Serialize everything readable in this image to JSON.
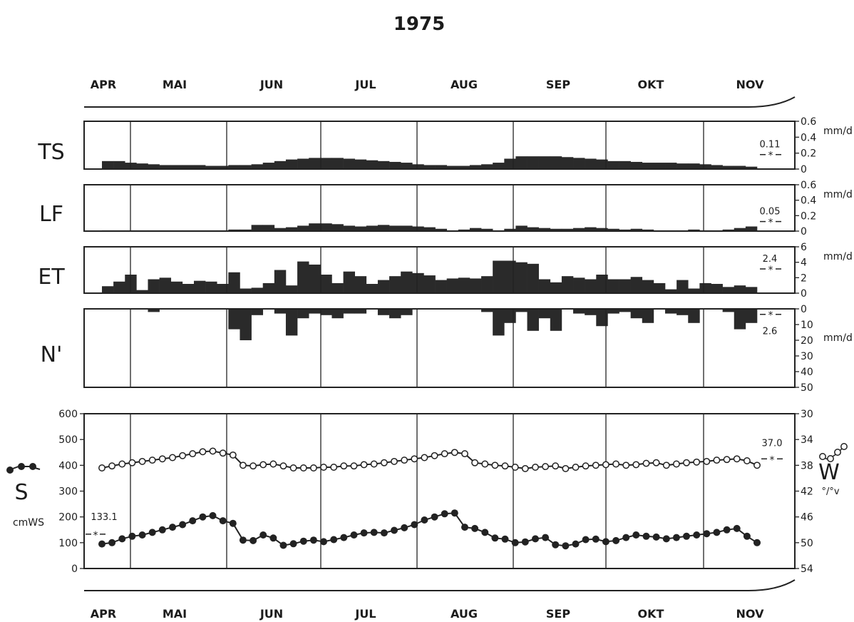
{
  "title": "1975",
  "months": [
    "APR",
    "MAI",
    "JUN",
    "JUL",
    "AUG",
    "SEP",
    "OKT",
    "NOV"
  ],
  "colors": {
    "ink": "#1c1c1c",
    "bar": "#2a2a2a",
    "background": "#ffffff"
  },
  "chart_data": [
    {
      "type": "bar",
      "label": "TS",
      "unit": "mm/d",
      "ylim": [
        0,
        0.6
      ],
      "ticks": [
        "0.6",
        "0.4",
        "0.2",
        "0"
      ],
      "mean_label": "0.11",
      "mean_value": 0.11,
      "values": [
        0.1,
        0.1,
        0.08,
        0.07,
        0.06,
        0.05,
        0.05,
        0.05,
        0.05,
        0.04,
        0.04,
        0.05,
        0.05,
        0.06,
        0.08,
        0.1,
        0.12,
        0.13,
        0.14,
        0.14,
        0.14,
        0.13,
        0.12,
        0.11,
        0.1,
        0.09,
        0.08,
        0.06,
        0.05,
        0.05,
        0.04,
        0.04,
        0.05,
        0.06,
        0.08,
        0.13,
        0.16,
        0.16,
        0.16,
        0.16,
        0.15,
        0.14,
        0.13,
        0.12,
        0.1,
        0.1,
        0.09,
        0.08,
        0.08,
        0.08,
        0.07,
        0.07,
        0.06,
        0.05,
        0.04,
        0.04,
        0.03
      ]
    },
    {
      "type": "bar",
      "label": "LF",
      "unit": "mm/d",
      "ylim": [
        0,
        0.6
      ],
      "ticks": [
        "0.6",
        "0.4",
        "0.2",
        "0"
      ],
      "mean_label": "0.05",
      "mean_value": 0.05,
      "values": [
        0.01,
        0.01,
        0.01,
        0.01,
        0.01,
        0.01,
        0.01,
        0.01,
        0.01,
        0.01,
        0.01,
        0.02,
        0.02,
        0.08,
        0.08,
        0.04,
        0.05,
        0.07,
        0.1,
        0.1,
        0.09,
        0.07,
        0.06,
        0.07,
        0.08,
        0.07,
        0.07,
        0.06,
        0.05,
        0.03,
        0.01,
        0.02,
        0.04,
        0.03,
        0.01,
        0.03,
        0.07,
        0.05,
        0.04,
        0.03,
        0.03,
        0.04,
        0.05,
        0.04,
        0.03,
        0.02,
        0.03,
        0.02,
        0.01,
        0.01,
        0.01,
        0.02,
        0.01,
        0.01,
        0.02,
        0.04,
        0.06
      ]
    },
    {
      "type": "bar",
      "label": "ET",
      "unit": "mm/d",
      "ylim": [
        0,
        6
      ],
      "ticks": [
        "6",
        "4",
        "2",
        "0"
      ],
      "mean_label": "2.4",
      "mean_value": 2.4,
      "values": [
        0.9,
        1.5,
        2.4,
        0.4,
        1.8,
        2.0,
        1.5,
        1.2,
        1.6,
        1.5,
        1.2,
        2.7,
        0.6,
        0.7,
        1.3,
        3.0,
        1.0,
        4.1,
        3.7,
        2.4,
        1.3,
        2.8,
        2.2,
        1.2,
        1.7,
        2.2,
        2.8,
        2.6,
        2.3,
        1.7,
        1.9,
        2.0,
        1.9,
        2.2,
        4.2,
        4.2,
        4.0,
        3.8,
        1.8,
        1.4,
        2.2,
        2.0,
        1.8,
        2.4,
        1.8,
        1.8,
        2.1,
        1.7,
        1.3,
        0.5,
        1.7,
        0.6,
        1.3,
        1.2,
        0.8,
        1.0,
        0.8
      ]
    },
    {
      "type": "bar",
      "label": "N'",
      "unit": "mm/d",
      "inverted": true,
      "ylim": [
        0,
        50
      ],
      "ticks": [
        "0",
        "10",
        "20",
        "30",
        "40",
        "50"
      ],
      "mean_label": "2.6",
      "mean_value": 2.6,
      "values": [
        0,
        0,
        0,
        0,
        2,
        0,
        0,
        0,
        0,
        0,
        0,
        13,
        20,
        4,
        0,
        3,
        17,
        6,
        3,
        4,
        6,
        3,
        3,
        0,
        4,
        6,
        4,
        0,
        0,
        0,
        0,
        0,
        0,
        2,
        17,
        9,
        2,
        14,
        6,
        14,
        0,
        3,
        4,
        11,
        3,
        2,
        6,
        9,
        0,
        3,
        4,
        9,
        0,
        0,
        2,
        13,
        9
      ]
    },
    {
      "type": "line",
      "label": "S",
      "unit": "cmWS",
      "left_axis": {
        "ylim": [
          0,
          600
        ],
        "ticks": [
          "600",
          "500",
          "400",
          "300",
          "200",
          "100",
          "0"
        ]
      },
      "right_axis": {
        "label": "W",
        "unit": "°/°v",
        "ylim": [
          30,
          54
        ],
        "ticks": [
          "30",
          "34",
          "38",
          "42",
          "46",
          "50",
          "54"
        ]
      },
      "series": [
        {
          "key": "W",
          "marker": "open-circle",
          "axis": "right",
          "mean_label": "37.0",
          "mean_value": 37.0,
          "values": [
            38.4,
            38.1,
            37.8,
            37.6,
            37.4,
            37.2,
            37.0,
            36.8,
            36.5,
            36.2,
            35.9,
            35.8,
            36.1,
            36.4,
            38.0,
            38.1,
            37.9,
            37.8,
            38.1,
            38.4,
            38.4,
            38.4,
            38.3,
            38.3,
            38.1,
            38.1,
            37.9,
            37.8,
            37.6,
            37.4,
            37.2,
            37.0,
            36.8,
            36.5,
            36.2,
            36.0,
            36.2,
            37.6,
            37.8,
            38.0,
            38.1,
            38.3,
            38.5,
            38.3,
            38.2,
            38.1,
            38.5,
            38.3,
            38.1,
            38.0,
            37.9,
            37.8,
            38.0,
            37.9,
            37.7,
            37.6,
            38.0,
            37.8,
            37.6,
            37.5,
            37.4,
            37.2,
            37.1,
            37.0,
            37.3,
            38.0
          ]
        },
        {
          "key": "S",
          "marker": "filled-circle",
          "axis": "left",
          "mean_label": "133.1",
          "mean_value": 133.1,
          "values": [
            95,
            100,
            115,
            125,
            130,
            140,
            150,
            160,
            170,
            185,
            200,
            205,
            185,
            175,
            110,
            108,
            130,
            118,
            90,
            96,
            106,
            110,
            104,
            112,
            120,
            130,
            138,
            140,
            138,
            148,
            158,
            170,
            188,
            200,
            212,
            215,
            160,
            155,
            140,
            118,
            114,
            100,
            103,
            115,
            120,
            92,
            88,
            95,
            112,
            114,
            104,
            108,
            120,
            130,
            125,
            122,
            115,
            120,
            125,
            130,
            135,
            140,
            150,
            155,
            125,
            100
          ]
        }
      ]
    }
  ]
}
